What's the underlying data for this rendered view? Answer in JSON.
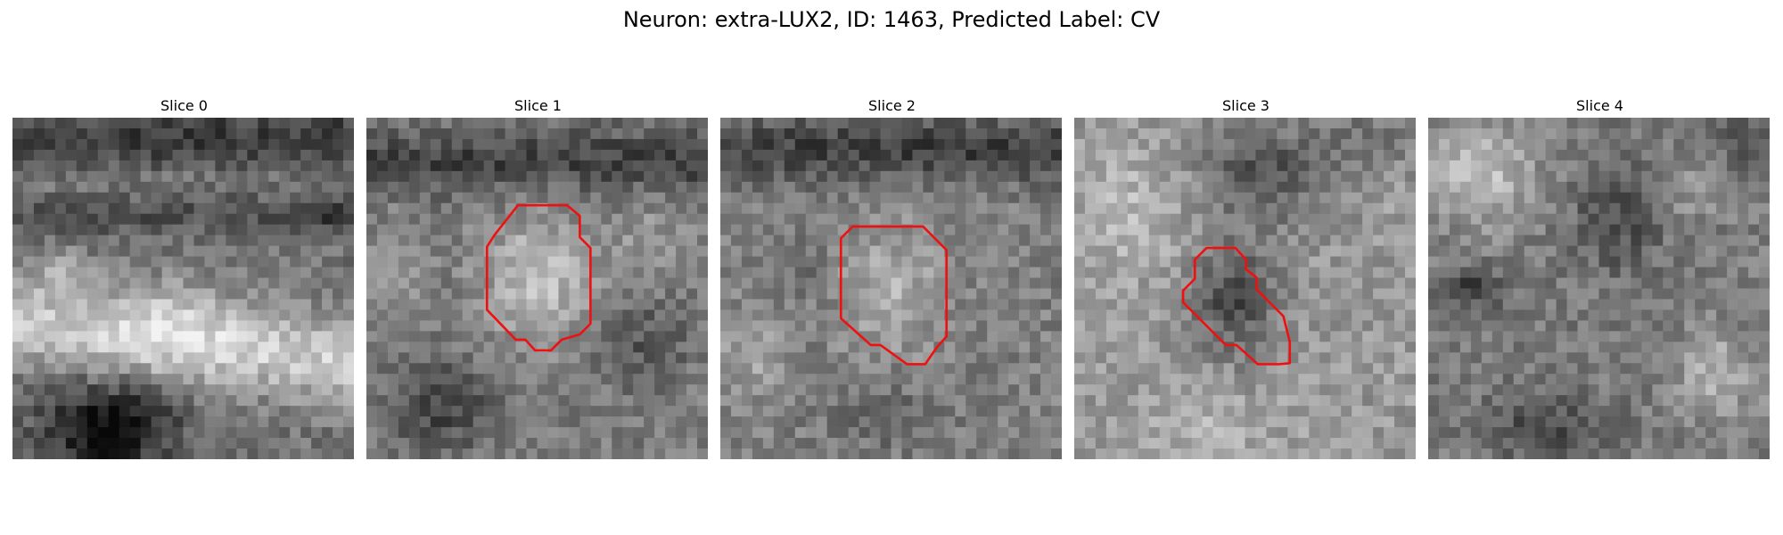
{
  "figure": {
    "title": "Neuron: extra-LUX2, ID: 1463, Predicted Label: CV"
  },
  "slices": [
    {
      "label": "Slice 0",
      "has_contour": false
    },
    {
      "label": "Slice 1",
      "has_contour": true
    },
    {
      "label": "Slice 2",
      "has_contour": true
    },
    {
      "label": "Slice 3",
      "has_contour": true
    },
    {
      "label": "Slice 4",
      "has_contour": false
    }
  ],
  "colors": {
    "contour": "#ee1111",
    "background": "#ffffff"
  }
}
